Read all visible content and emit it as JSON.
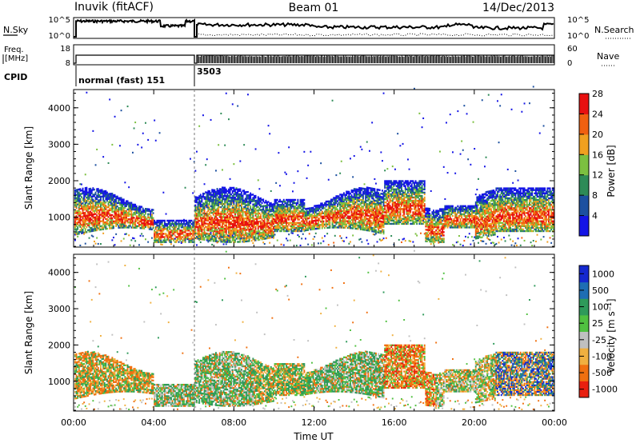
{
  "header": {
    "station": "Inuvik (fitACF)",
    "beam": "Beam 01",
    "date": "14/Dec/2013"
  },
  "top_panels": {
    "nsky_label": "N.Sky",
    "nsearch_label": "N.Search",
    "freq_label_1": "Freq.",
    "freq_label_2": "[MHz]",
    "nave_label": "Nave",
    "left_ticks_upper": [
      "10^5",
      "10^0"
    ],
    "right_ticks_upper": [
      "10^5",
      "10^0"
    ],
    "left_ticks_lower": [
      "18",
      "8"
    ],
    "right_ticks_lower": [
      "60",
      "0"
    ],
    "cpid_label": "CPID",
    "cpid_mode_1": "normal (fast) 151",
    "cpid_mode_2": "3503"
  },
  "chart_data": [
    {
      "type": "heatmap",
      "name": "power",
      "ylabel": "Slant Range [km]",
      "yticks": [
        "1000",
        "2000",
        "3000",
        "4000"
      ],
      "ylim": [
        180,
        4500
      ],
      "xlim_hours": [
        0,
        24
      ],
      "colorbar_label": "Power [dB]",
      "colorbar_ticks": [
        "4",
        "8",
        "12",
        "16",
        "20",
        "24",
        "28"
      ],
      "colorbar_range": [
        0,
        30
      ],
      "colors": [
        "#1414e6",
        "#1c50a0",
        "#2e8b57",
        "#7cc040",
        "#f0a020",
        "#f06010",
        "#e81010"
      ]
    },
    {
      "type": "heatmap",
      "name": "velocity",
      "ylabel": "Slant Range [km]",
      "yticks": [
        "1000",
        "2000",
        "3000",
        "4000"
      ],
      "ylim": [
        180,
        4500
      ],
      "xlim_hours": [
        0,
        24
      ],
      "xticks": [
        "00:00",
        "04:00",
        "08:00",
        "12:00",
        "16:00",
        "20:00",
        "00:00"
      ],
      "xlabel": "Time UT",
      "colorbar_label": "Velocity [m s⁻¹]",
      "colorbar_ticks": [
        "1000",
        "500",
        "100",
        "25",
        "-25",
        "-100",
        "-500",
        "-1000"
      ],
      "colors": [
        "#1428d0",
        "#1e6eb4",
        "#2e9a5a",
        "#50c040",
        "#c0c0c0",
        "#f0b040",
        "#f07010",
        "#e82010"
      ]
    }
  ]
}
